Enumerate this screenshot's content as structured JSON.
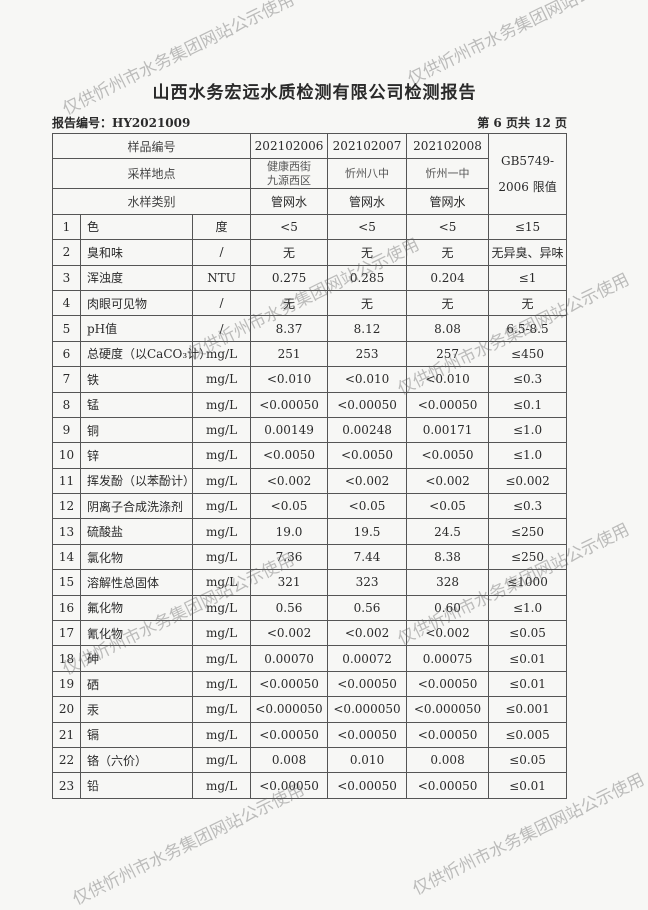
{
  "title": "山西水务宏远水质检测有限公司检测报告",
  "report_no": "报告编号：HY2021009",
  "page_info": "第 6 页共 12 页",
  "watermark": "仅供忻州市水务集团网站公示使用",
  "header": {
    "sample_id_label": "样品编号",
    "location_label": "采样地点",
    "type_label": "水样类别",
    "standard_label": "GB5749-2006 限值",
    "samples": [
      {
        "id": "202102006",
        "location": "健康西街九源西区",
        "type": "管网水"
      },
      {
        "id": "202102007",
        "location": "忻州八中",
        "type": "管网水"
      },
      {
        "id": "202102008",
        "location": "忻州一中",
        "type": "管网水"
      }
    ]
  },
  "rows": [
    {
      "no": "1",
      "item": "色",
      "unit": "度",
      "v": [
        "<5",
        "<5",
        "<5"
      ],
      "limit": "≤15"
    },
    {
      "no": "2",
      "item": "臭和味",
      "unit": "/",
      "v": [
        "无",
        "无",
        "无"
      ],
      "limit": "无异臭、异味"
    },
    {
      "no": "3",
      "item": "浑浊度",
      "unit": "NTU",
      "v": [
        "0.275",
        "0.285",
        "0.204"
      ],
      "limit": "≤1"
    },
    {
      "no": "4",
      "item": "肉眼可见物",
      "unit": "/",
      "v": [
        "无",
        "无",
        "无"
      ],
      "limit": "无"
    },
    {
      "no": "5",
      "item": "pH值",
      "unit": "/",
      "v": [
        "8.37",
        "8.12",
        "8.08"
      ],
      "limit": "6.5-8.5"
    },
    {
      "no": "6",
      "item": "总硬度（以CaCO₃计）",
      "unit": "mg/L",
      "v": [
        "251",
        "253",
        "257"
      ],
      "limit": "≤450"
    },
    {
      "no": "7",
      "item": "铁",
      "unit": "mg/L",
      "v": [
        "<0.010",
        "<0.010",
        "<0.010"
      ],
      "limit": "≤0.3"
    },
    {
      "no": "8",
      "item": "锰",
      "unit": "mg/L",
      "v": [
        "<0.00050",
        "<0.00050",
        "<0.00050"
      ],
      "limit": "≤0.1"
    },
    {
      "no": "9",
      "item": "铜",
      "unit": "mg/L",
      "v": [
        "0.00149",
        "0.00248",
        "0.00171"
      ],
      "limit": "≤1.0"
    },
    {
      "no": "10",
      "item": "锌",
      "unit": "mg/L",
      "v": [
        "<0.0050",
        "<0.0050",
        "<0.0050"
      ],
      "limit": "≤1.0"
    },
    {
      "no": "11",
      "item": "挥发酚（以苯酚计）",
      "unit": "mg/L",
      "v": [
        "<0.002",
        "<0.002",
        "<0.002"
      ],
      "limit": "≤0.002"
    },
    {
      "no": "12",
      "item": "阴离子合成洗涤剂",
      "unit": "mg/L",
      "v": [
        "<0.05",
        "<0.05",
        "<0.05"
      ],
      "limit": "≤0.3"
    },
    {
      "no": "13",
      "item": "硫酸盐",
      "unit": "mg/L",
      "v": [
        "19.0",
        "19.5",
        "24.5"
      ],
      "limit": "≤250"
    },
    {
      "no": "14",
      "item": "氯化物",
      "unit": "mg/L",
      "v": [
        "7.36",
        "7.44",
        "8.38"
      ],
      "limit": "≤250"
    },
    {
      "no": "15",
      "item": "溶解性总固体",
      "unit": "mg/L",
      "v": [
        "321",
        "323",
        "328"
      ],
      "limit": "≤1000"
    },
    {
      "no": "16",
      "item": "氟化物",
      "unit": "mg/L",
      "v": [
        "0.56",
        "0.56",
        "0.60"
      ],
      "limit": "≤1.0"
    },
    {
      "no": "17",
      "item": "氰化物",
      "unit": "mg/L",
      "v": [
        "<0.002",
        "<0.002",
        "<0.002"
      ],
      "limit": "≤0.05"
    },
    {
      "no": "18",
      "item": "砷",
      "unit": "mg/L",
      "v": [
        "0.00070",
        "0.00072",
        "0.00075"
      ],
      "limit": "≤0.01"
    },
    {
      "no": "19",
      "item": "硒",
      "unit": "mg/L",
      "v": [
        "<0.00050",
        "<0.00050",
        "<0.00050"
      ],
      "limit": "≤0.01"
    },
    {
      "no": "20",
      "item": "汞",
      "unit": "mg/L",
      "v": [
        "<0.000050",
        "<0.000050",
        "<0.000050"
      ],
      "limit": "≤0.001"
    },
    {
      "no": "21",
      "item": "镉",
      "unit": "mg/L",
      "v": [
        "<0.00050",
        "<0.00050",
        "<0.00050"
      ],
      "limit": "≤0.005"
    },
    {
      "no": "22",
      "item": "铬（六价）",
      "unit": "mg/L",
      "v": [
        "0.008",
        "0.010",
        "0.008"
      ],
      "limit": "≤0.05"
    },
    {
      "no": "23",
      "item": "铅",
      "unit": "mg/L",
      "v": [
        "<0.00050",
        "<0.00050",
        "<0.00050"
      ],
      "limit": "≤0.01"
    }
  ]
}
